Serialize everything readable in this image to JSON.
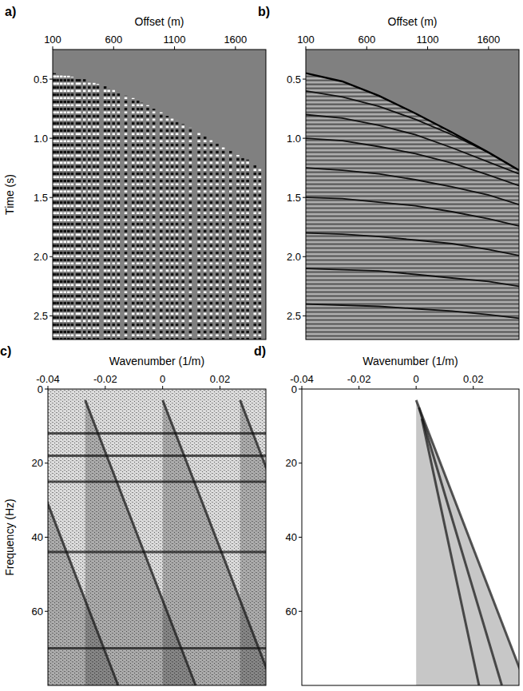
{
  "chart_data": [
    {
      "type": "traces",
      "title": "a)",
      "x_label": "Offset (m)",
      "y_label": "Time (s)",
      "xlim": [
        100,
        1850
      ],
      "xticks": [
        100,
        600,
        1100,
        1600
      ],
      "ylim": [
        0.25,
        2.7
      ],
      "yticks": [
        0.5,
        {
          "value": 1,
          "label": "1.0"
        },
        1.5,
        {
          "value": 2,
          "label": "2.0"
        },
        2.5
      ],
      "x": [
        100,
        115,
        140,
        170,
        200,
        230,
        260,
        300,
        320,
        360,
        400,
        440,
        470,
        530,
        560,
        600,
        640,
        700,
        760,
        800,
        830,
        880,
        930,
        990,
        1040,
        1080,
        1120,
        1170,
        1230,
        1300,
        1350,
        1400,
        1450,
        1500,
        1560,
        1620,
        1660,
        1700,
        1760,
        1800
      ],
      "values": [
        0.45,
        0.45,
        0.46,
        0.46,
        0.47,
        0.47,
        0.48,
        0.49,
        0.49,
        0.5,
        0.52,
        0.53,
        0.54,
        0.56,
        0.58,
        0.59,
        0.61,
        0.64,
        0.66,
        0.68,
        0.7,
        0.72,
        0.75,
        0.78,
        0.81,
        0.83,
        0.85,
        0.88,
        0.91,
        0.95,
        0.98,
        1.01,
        1.04,
        1.07,
        1.1,
        1.14,
        1.16,
        1.18,
        1.22,
        1.25
      ]
    },
    {
      "type": "section",
      "title": "b)",
      "x_label": "Offset (m)",
      "xlim": [
        100,
        1850
      ],
      "xticks": [
        100,
        600,
        1100,
        1600
      ],
      "ylim": [
        0.25,
        2.7
      ],
      "yticks": [
        0.5,
        {
          "value": 1,
          "label": "1.0"
        },
        1.5,
        {
          "value": 2,
          "label": "2.0"
        },
        2.5
      ],
      "x": [
        100,
        400,
        700,
        1000,
        1300,
        1600,
        1850
      ],
      "values": [
        0.45,
        0.52,
        0.64,
        0.79,
        0.95,
        1.12,
        1.27
      ],
      "reflections": [
        [
          0.6,
          0.65,
          0.73,
          0.84,
          0.97,
          1.12,
          1.24
        ],
        [
          0.8,
          0.83,
          0.89,
          0.97,
          1.08,
          1.2,
          1.3
        ],
        [
          1.0,
          1.02,
          1.07,
          1.13,
          1.21,
          1.31,
          1.4
        ],
        [
          1.25,
          1.27,
          1.3,
          1.35,
          1.41,
          1.48,
          1.56
        ],
        [
          1.5,
          1.51,
          1.54,
          1.57,
          1.62,
          1.68,
          1.74
        ],
        [
          1.8,
          1.81,
          1.83,
          1.86,
          1.89,
          1.94,
          1.99
        ],
        [
          2.1,
          2.11,
          2.12,
          2.15,
          2.18,
          2.21,
          2.25
        ],
        [
          2.4,
          2.41,
          2.42,
          2.44,
          2.46,
          2.49,
          2.52
        ]
      ]
    },
    {
      "type": "spectrum",
      "title": "c)",
      "x_label": "Wavenumber (1/m)",
      "y_label": "Frequency (Hz)",
      "xlim": [
        -0.04,
        0.036
      ],
      "xticks": [
        -0.04,
        -0.02,
        0,
        0.02
      ],
      "ylim": [
        0,
        80
      ],
      "yticks": [
        0,
        20,
        40,
        60
      ],
      "fills": [
        {
          "k": [
            -0.054,
            -0.018,
            -0.0155,
            -0.054
          ],
          "f": [
            3,
            75,
            80,
            80
          ]
        },
        {
          "k": [
            -0.027,
            0.009,
            0.0115,
            -0.027
          ],
          "f": [
            3,
            75,
            80,
            80
          ]
        },
        {
          "k": [
            0,
            0.036,
            0.0385,
            0
          ],
          "f": [
            3,
            75,
            80,
            80
          ]
        },
        {
          "k": [
            0.027,
            0.063,
            0.0655,
            0.027
          ],
          "f": [
            3,
            75,
            80,
            80
          ]
        }
      ],
      "bands": [
        {
          "k": [
            -0.054,
            -0.0155
          ],
          "f": [
            3,
            80
          ]
        },
        {
          "k": [
            -0.027,
            0.0115
          ],
          "f": [
            3,
            80
          ]
        },
        {
          "k": [
            0,
            0.0385
          ],
          "f": [
            3,
            80
          ]
        },
        {
          "k": [
            0.027,
            0.0655
          ],
          "f": [
            3,
            80
          ]
        },
        {
          "k": [
            -0.04,
            0.036
          ],
          "f": [
            12,
            12
          ]
        },
        {
          "k": [
            -0.04,
            0.036
          ],
          "f": [
            18,
            18
          ]
        },
        {
          "k": [
            -0.04,
            0.036
          ],
          "f": [
            25,
            25
          ]
        },
        {
          "k": [
            -0.04,
            0.036
          ],
          "f": [
            44,
            44
          ]
        },
        {
          "k": [
            -0.04,
            0.036
          ],
          "f": [
            70,
            70
          ]
        }
      ]
    },
    {
      "type": "spectrum",
      "title": "d)",
      "x_label": "Wavenumber (1/m)",
      "xlim": [
        -0.04,
        0.036
      ],
      "xticks": [
        -0.04,
        -0.02,
        0,
        0.02
      ],
      "ylim": [
        0,
        80
      ],
      "yticks": [
        0,
        20,
        40,
        60
      ],
      "fills": [
        {
          "k": [
            0,
            0.036,
            0.0385,
            0
          ],
          "f": [
            3,
            75,
            80,
            80
          ]
        }
      ],
      "bands": [
        {
          "k": [
            0,
            0.0385
          ],
          "f": [
            3,
            80
          ]
        },
        {
          "k": [
            0.001,
            0.03
          ],
          "f": [
            5,
            80
          ]
        },
        {
          "k": [
            0.002,
            0.022
          ],
          "f": [
            8,
            80
          ]
        }
      ]
    }
  ]
}
